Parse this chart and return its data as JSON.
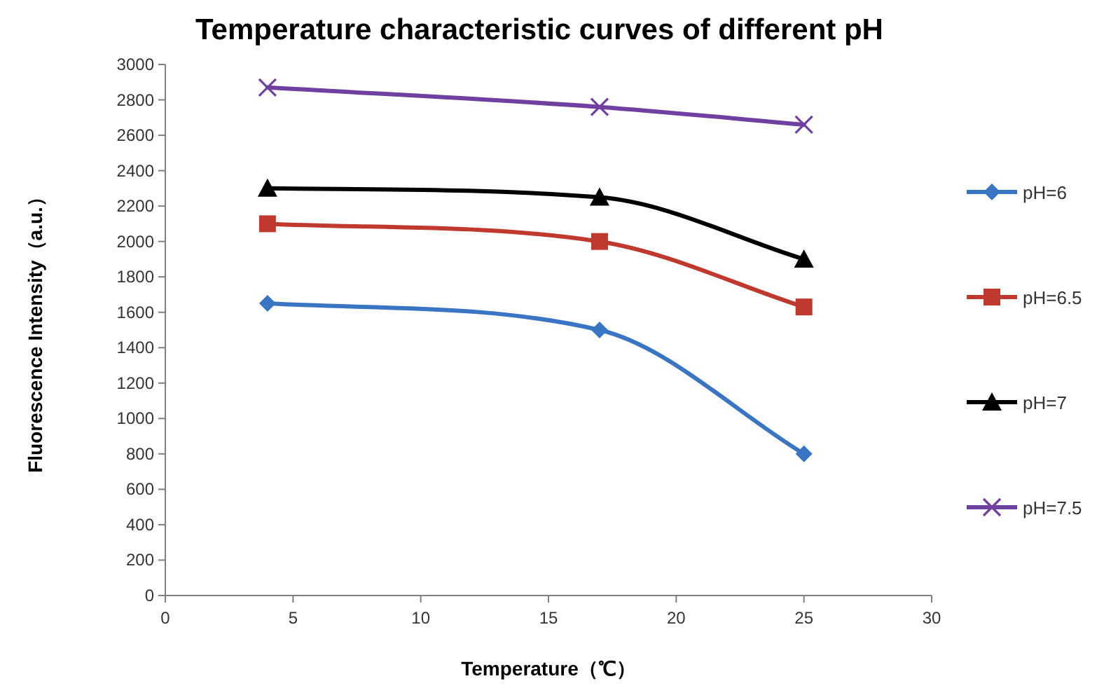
{
  "chart_data": {
    "type": "line",
    "title": "Temperature characteristic curves of different pH",
    "xlabel": "Temperature（℃）",
    "ylabel": "Fluorescence Intensity（a.u.）",
    "x": [
      4,
      17,
      25
    ],
    "series": [
      {
        "name": "pH=6",
        "color": "#3a75c4",
        "marker": "diamond",
        "values": [
          1650,
          1500,
          800
        ]
      },
      {
        "name": "pH=6.5",
        "color": "#c0392f",
        "marker": "square",
        "values": [
          2100,
          2000,
          1630
        ]
      },
      {
        "name": "pH=7",
        "color": "#000000",
        "marker": "triangle",
        "values": [
          2300,
          2250,
          1900
        ]
      },
      {
        "name": "pH=7.5",
        "color": "#7040a0",
        "marker": "cross",
        "values": [
          2870,
          2760,
          2660
        ]
      }
    ],
    "xlim": [
      0,
      30
    ],
    "xticks": [
      0,
      5,
      10,
      15,
      20,
      25,
      30
    ],
    "ylim": [
      0,
      3000
    ],
    "yticks": [
      0,
      200,
      400,
      600,
      800,
      1000,
      1200,
      1400,
      1600,
      1800,
      2000,
      2200,
      2400,
      2600,
      2800,
      3000
    ],
    "grid": false,
    "legend": "right",
    "line_style": "solid"
  }
}
